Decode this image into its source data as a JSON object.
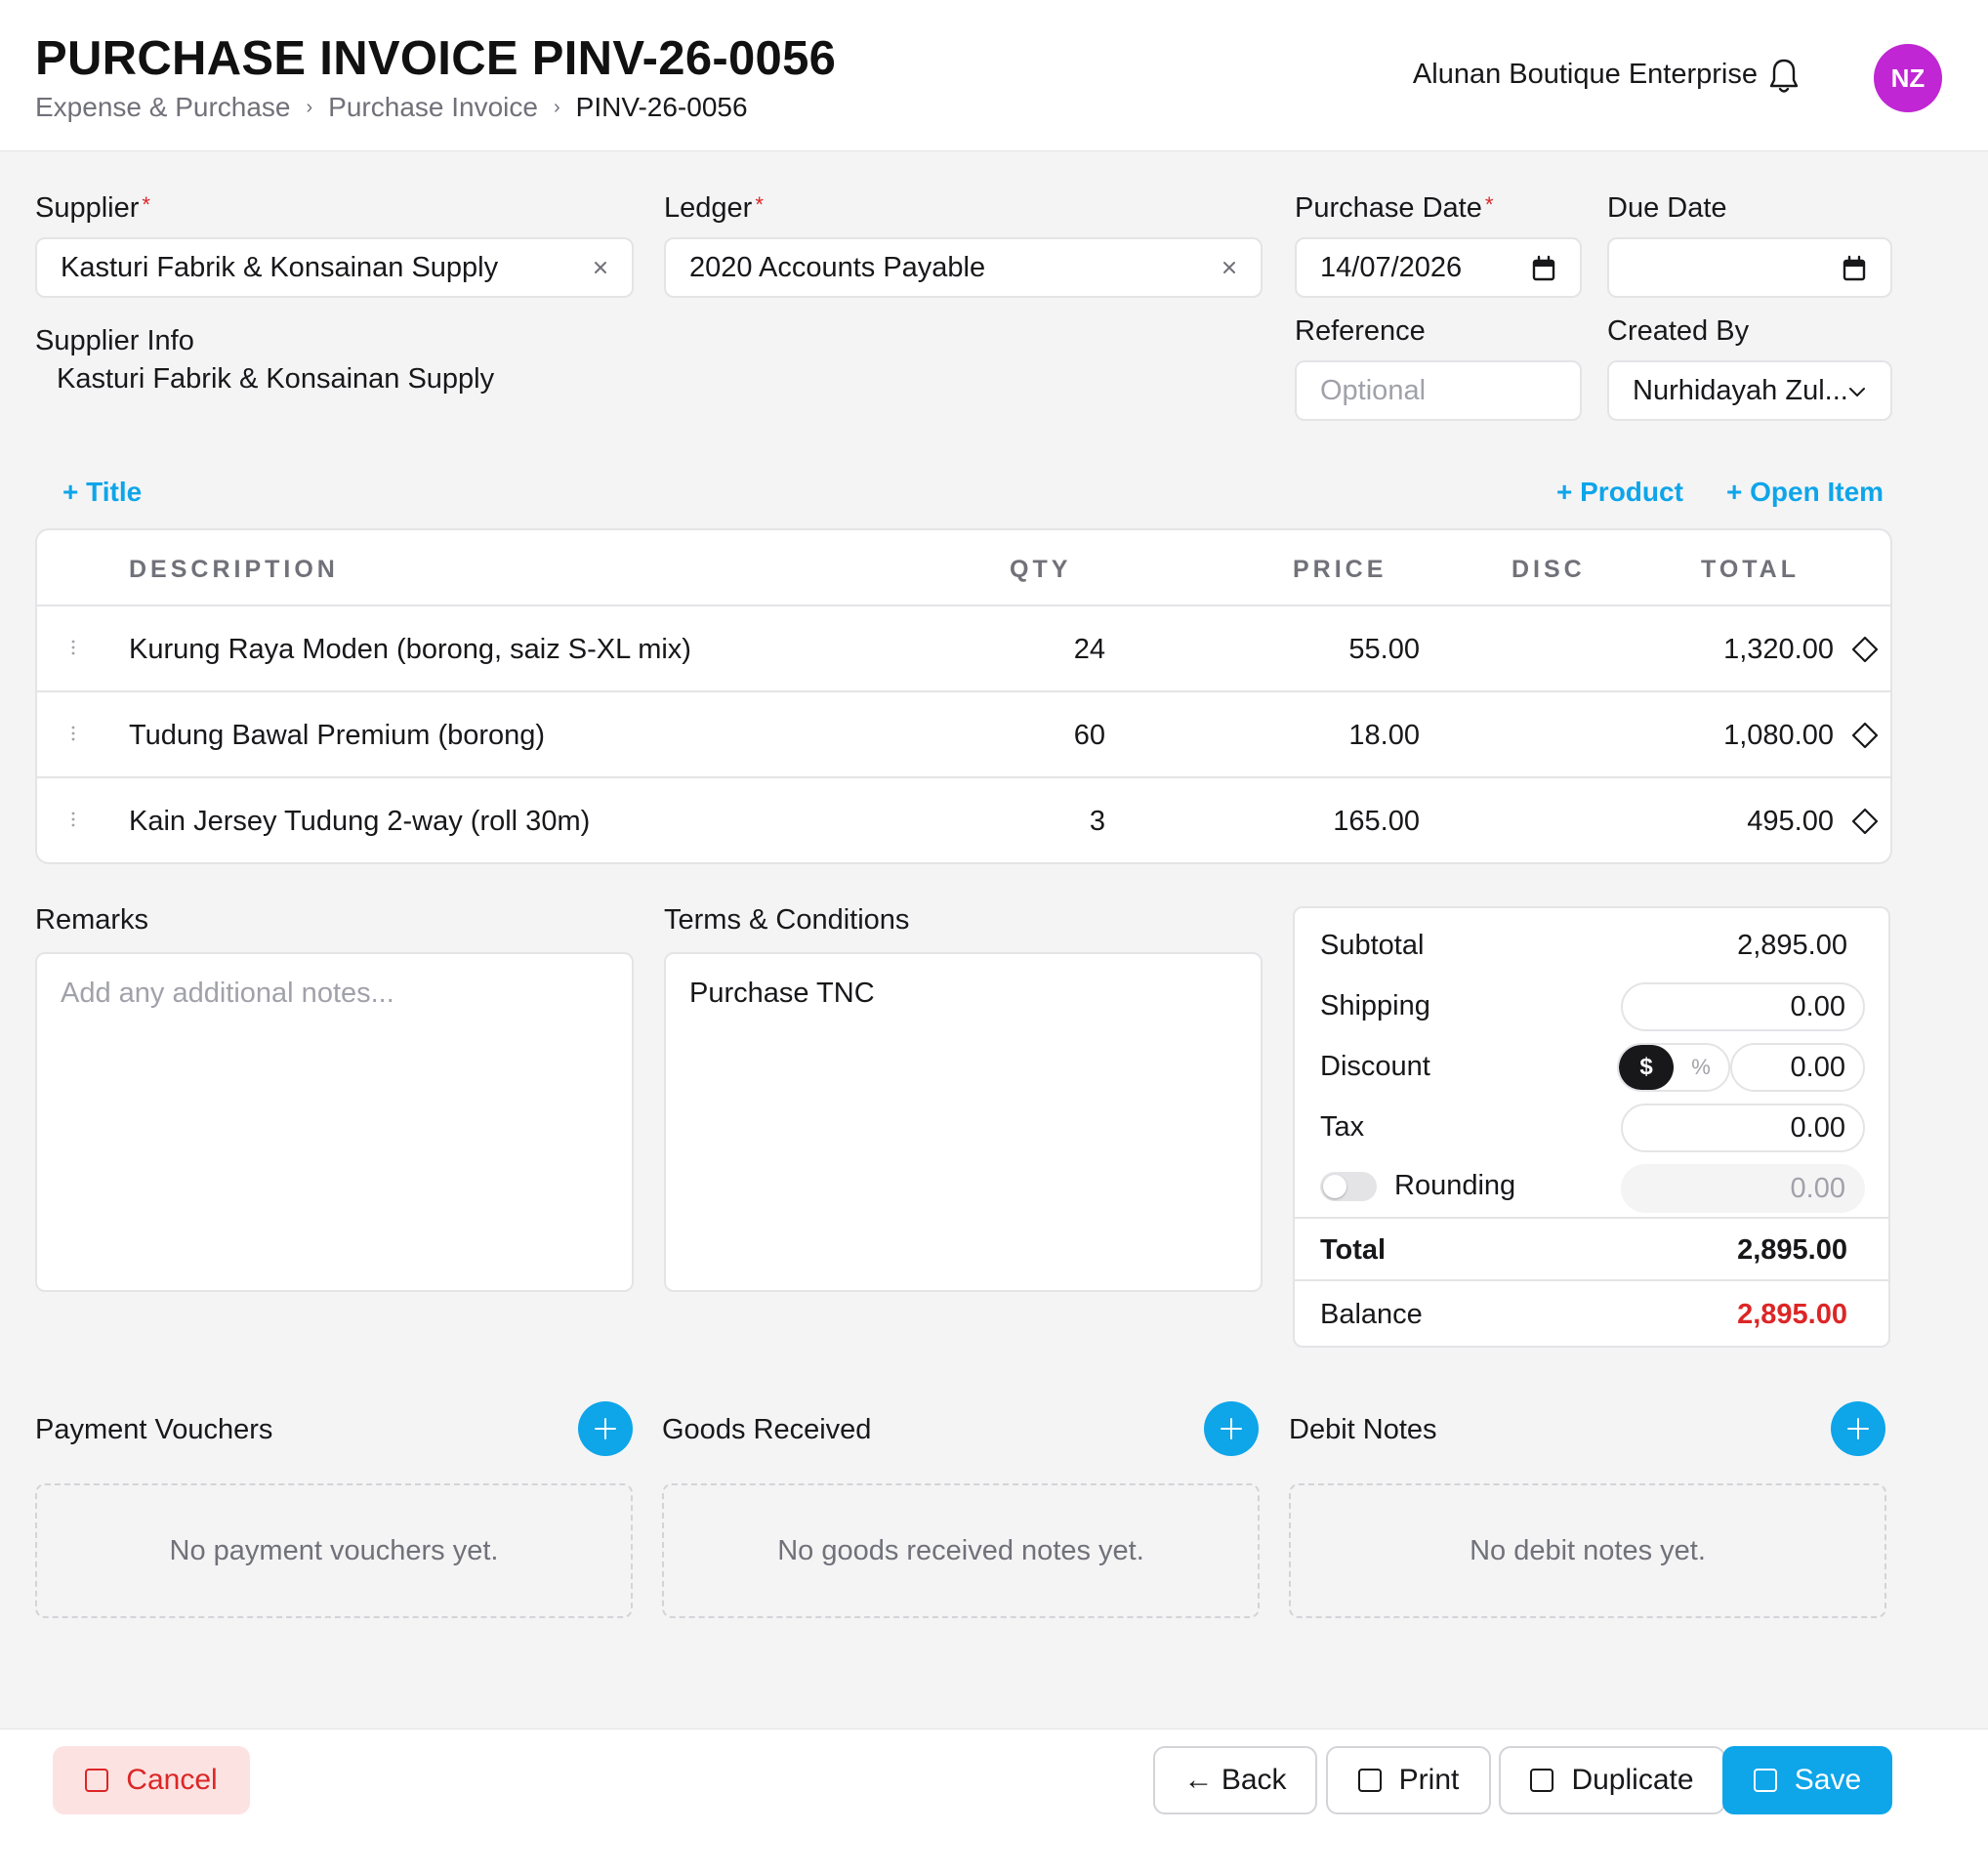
{
  "header": {
    "title": "PURCHASE INVOICE PINV-26-0056",
    "breadcrumb": [
      "Expense & Purchase",
      "Purchase Invoice",
      "PINV-26-0056"
    ],
    "company": "Alunan Boutique Enterprise",
    "avatar_initials": "NZ"
  },
  "form": {
    "supplier_label": "Supplier",
    "supplier_value": "Kasturi Fabrik & Konsainan Supply",
    "ledger_label": "Ledger",
    "ledger_value": "2020 Accounts Payable",
    "purchase_date_label": "Purchase Date",
    "purchase_date_value": "14/07/2026",
    "due_date_label": "Due Date",
    "due_date_value": "",
    "reference_label": "Reference",
    "reference_placeholder": "Optional",
    "created_by_label": "Created By",
    "created_by_value": "Nurhidayah Zul...",
    "supplier_info_label": "Supplier Info",
    "supplier_info_value": "Kasturi Fabrik & Konsainan Supply",
    "required_mark": "*"
  },
  "actions": {
    "add_title": "+ Title",
    "add_product": "+ Product",
    "add_open_item": "+ Open Item"
  },
  "table": {
    "columns": [
      "DESCRIPTION",
      "QTY",
      "PRICE",
      "DISC",
      "TOTAL"
    ],
    "rows": [
      {
        "description": "Kurung Raya Moden (borong, saiz S-XL mix)",
        "qty": "24",
        "price": "55.00",
        "disc": "",
        "total": "1,320.00"
      },
      {
        "description": "Tudung Bawal Premium (borong)",
        "qty": "60",
        "price": "18.00",
        "disc": "",
        "total": "1,080.00"
      },
      {
        "description": "Kain Jersey Tudung 2-way (roll 30m)",
        "qty": "3",
        "price": "165.00",
        "disc": "",
        "total": "495.00"
      }
    ]
  },
  "remarks": {
    "label": "Remarks",
    "placeholder": "Add any additional notes..."
  },
  "terms": {
    "label": "Terms & Conditions",
    "value": "Purchase TNC"
  },
  "summary": {
    "subtotal_label": "Subtotal",
    "subtotal_value": "2,895.00",
    "shipping_label": "Shipping",
    "shipping_value": "0.00",
    "discount_label": "Discount",
    "discount_mode_amount": "$",
    "discount_mode_percent": "%",
    "discount_value": "0.00",
    "tax_label": "Tax",
    "tax_value": "0.00",
    "rounding_label": "Rounding",
    "rounding_value": "0.00",
    "total_label": "Total",
    "total_value": "2,895.00",
    "balance_label": "Balance",
    "balance_value": "2,895.00",
    "balance_color": "#dc2626"
  },
  "sections": {
    "payment_vouchers_label": "Payment Vouchers",
    "payment_vouchers_empty": "No payment vouchers yet.",
    "goods_received_label": "Goods Received",
    "goods_received_empty": "No goods received notes yet.",
    "debit_notes_label": "Debit Notes",
    "debit_notes_empty": "No debit notes yet."
  },
  "footer": {
    "cancel": "Cancel",
    "back": "← Back",
    "print": "Print",
    "duplicate": "Duplicate",
    "save": "Save"
  },
  "colors": {
    "accent": "#0ea5e9",
    "avatar": "#c026d3",
    "danger": "#dc2626"
  }
}
